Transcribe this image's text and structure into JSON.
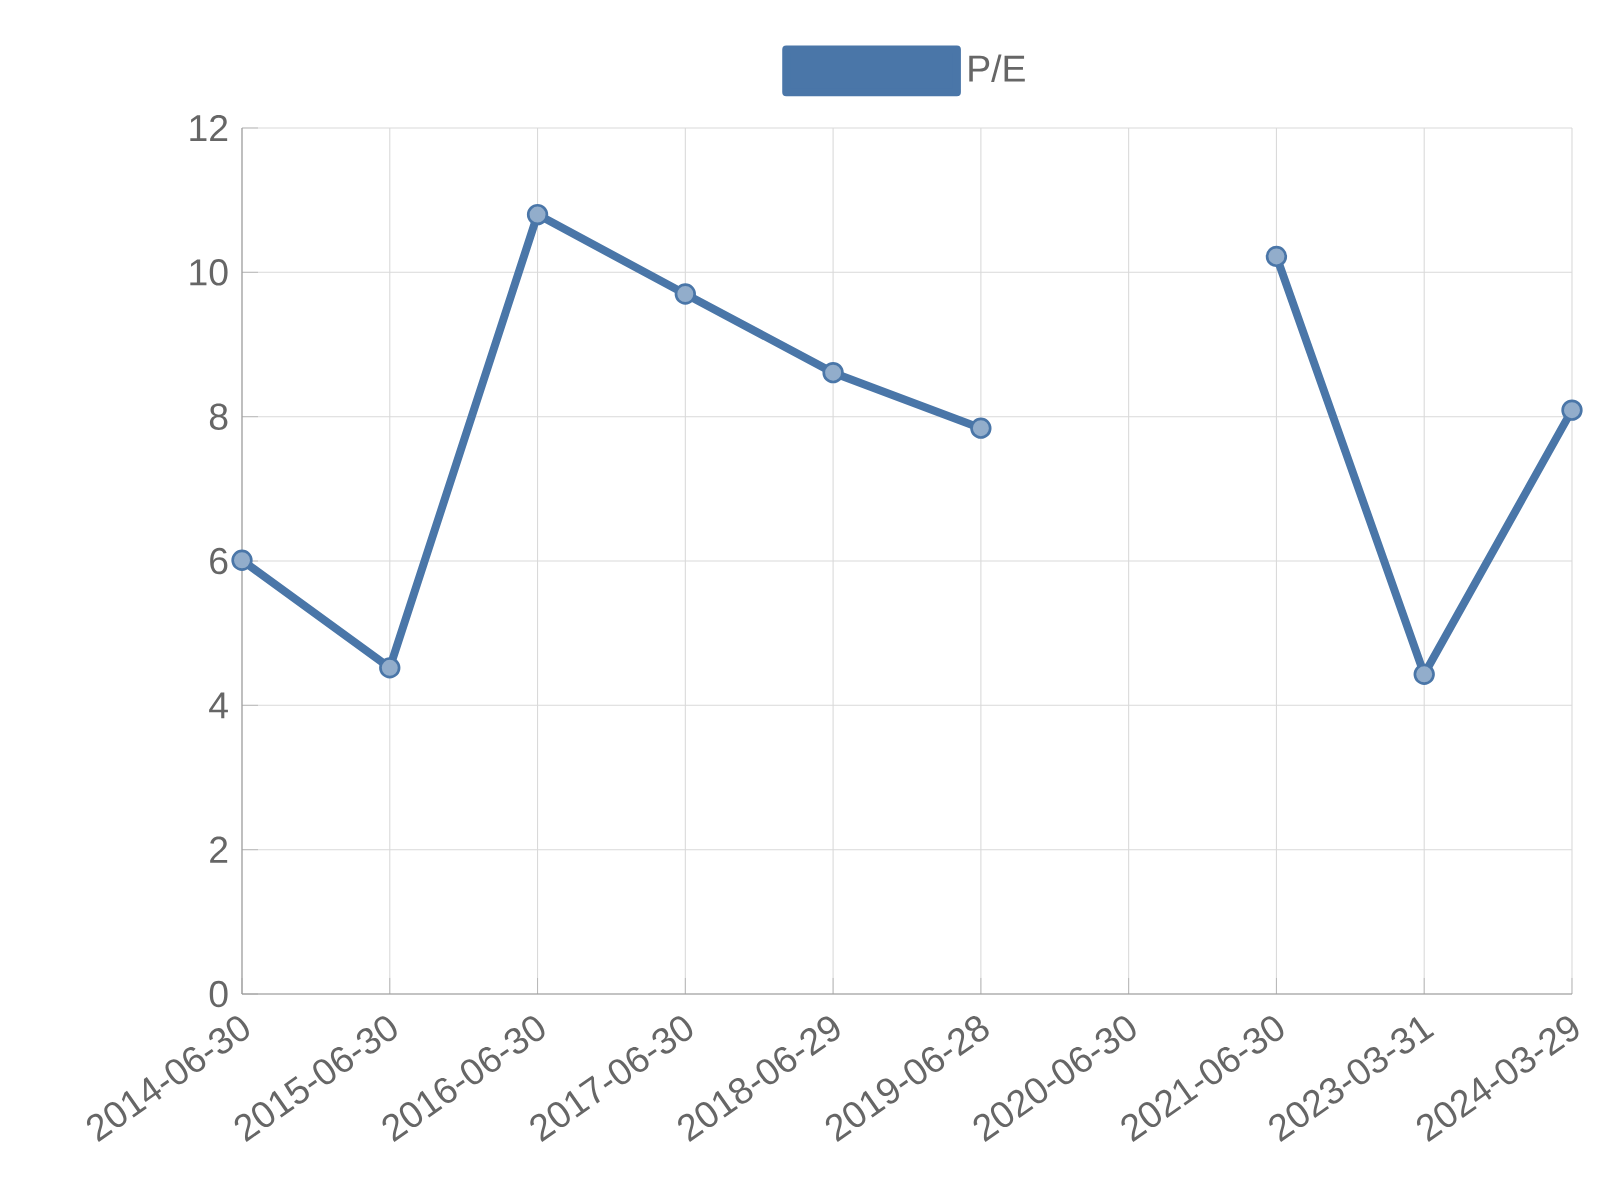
{
  "chart_data": {
    "type": "line",
    "categories": [
      "2014-06-30",
      "2015-06-30",
      "2016-06-30",
      "2017-06-30",
      "2018-06-29",
      "2019-06-28",
      "2020-06-30",
      "2021-06-30",
      "2023-03-31",
      "2024-03-29"
    ],
    "series": [
      {
        "name": "P/E",
        "color": "#4a76a8",
        "values": [
          6.01,
          4.52,
          10.8,
          9.7,
          8.61,
          7.84,
          null,
          10.22,
          4.43,
          8.09
        ]
      }
    ],
    "ylim": [
      0,
      12
    ],
    "yticks": [
      0,
      2,
      4,
      6,
      8,
      10,
      12
    ],
    "grid": true,
    "legend": "top",
    "marker": "circle",
    "line_style": "solid"
  }
}
